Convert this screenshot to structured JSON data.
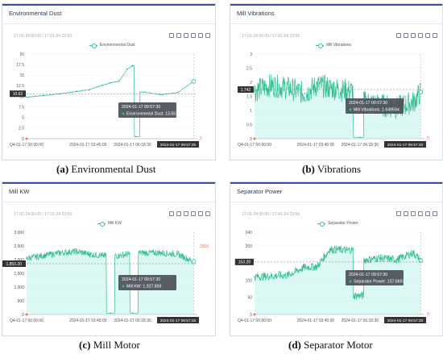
{
  "panels": [
    {
      "id": "dust",
      "title": "Environmental Dust",
      "range": "17-01-24 00:00 / 17-01-24 23:59",
      "legend": "Environmental Dust",
      "accent": "#2fbf8c",
      "yticks": [
        "0",
        "2.5",
        "5",
        "7.5",
        "10",
        "12.5",
        "15",
        "17.5",
        "20"
      ],
      "xticks": [
        "Q4-01-17 00:00:00",
        "2024-01-17 03:45:00",
        "2024-01-17 06:18:30"
      ],
      "ylim": [
        0,
        20
      ],
      "cursor_value": "10.62",
      "right_edge_label": "0",
      "tooltip_time": "2024-01-17 09:57:30",
      "tooltip_label": "Environmental Dust",
      "tooltip_value": "13.55327",
      "end_label": "2024-01-17 09:57:30"
    },
    {
      "id": "vib",
      "title": "Mill Vibrations",
      "range": "17-01-24 00:00 / 17-01-24 23:59",
      "legend": "Mill Vibrations",
      "accent": "#2fbf8c",
      "yticks": [
        "0",
        "0.5",
        "1",
        "1.5",
        "2",
        "2.5",
        "3"
      ],
      "xticks": [
        "Q4-01-17 00:00:00",
        "2024-01-17 03:45:00",
        "2024-01-17 06:18:30"
      ],
      "ylim": [
        0,
        3
      ],
      "cursor_value": "1.742",
      "right_edge_label": "0",
      "tooltip_time": "2024-01-17 09:57:30",
      "tooltip_label": "Mill Vibrations",
      "tooltip_value": "1.648594",
      "end_label": "2024-01-17 09:57:30"
    },
    {
      "id": "kw",
      "title": "Mill KW",
      "range": "17-01-24 00:00 / 17-01-24 23:59",
      "legend": "Mill KW",
      "accent": "#2fbf8c",
      "yticks": [
        "0",
        "500",
        "1,000",
        "1,500",
        "2,000",
        "2,500",
        "3,000"
      ],
      "xticks": [
        "Q4-01-17 00:00:00",
        "2024-01-17 03:45:00",
        "2024-01-17 06:18:30"
      ],
      "ylim": [
        0,
        3000
      ],
      "cursor_value": "1,853.20",
      "right_edge_label": "2500",
      "tooltip_time": "2024-01-17 09:57:30",
      "tooltip_label": "Mill KW",
      "tooltip_value": "1,927.859",
      "end_label": "2024-01-17 09:57:30"
    },
    {
      "id": "sep",
      "title": "Separator Power",
      "range": "17-01-24 00:00 / 17-01-24 23:59",
      "legend": "Separator Power",
      "accent": "#2fbf8c",
      "yticks": [
        "0",
        "50",
        "100",
        "150",
        "200",
        "240"
      ],
      "xticks": [
        "Q4-01-17 00:00:00",
        "2024-01-17 03:45:00",
        "2024-01-17 06:18:30"
      ],
      "ylim": [
        0,
        240
      ],
      "cursor_value": "153.28",
      "right_edge_label": "0",
      "tooltip_time": "2024-01-17 09:57:30",
      "tooltip_label": "Separator Power",
      "tooltip_value": "157.6693",
      "end_label": "2024-01-17 09:57:30"
    }
  ],
  "captions": [
    {
      "letter": "(a)",
      "text": "Environmental Dust"
    },
    {
      "letter": "(b)",
      "text": "Vibrations"
    },
    {
      "letter": "(c)",
      "text": "Mill Motor"
    },
    {
      "letter": "(d)",
      "text": "Separator Motor"
    }
  ],
  "toolbar_icons": [
    "zoom-icon",
    "zoom-reset-icon",
    "data-view-icon",
    "line-chart-icon",
    "bar-chart-icon",
    "download-icon"
  ],
  "chart_data": [
    {
      "type": "line",
      "title": "Environmental Dust",
      "ylim": [
        0,
        20
      ],
      "x": [
        "00:00",
        "01:00",
        "02:00",
        "03:00",
        "03:45",
        "04:30",
        "05:00",
        "05:30",
        "06:00",
        "06:18",
        "06:30",
        "07:00",
        "08:00",
        "09:00",
        "09:57"
      ],
      "series": [
        {
          "name": "Environmental Dust",
          "values": [
            9.8,
            10.2,
            10.6,
            11.2,
            11.6,
            12.6,
            13.2,
            13.6,
            16.4,
            17.2,
            0.5,
            11.0,
            10.4,
            10.9,
            13.55
          ]
        }
      ]
    },
    {
      "type": "line",
      "title": "Mill Vibrations",
      "ylim": [
        0,
        3
      ],
      "x": [
        "00:00",
        "01:00",
        "02:00",
        "03:00",
        "03:45",
        "04:30",
        "05:30",
        "06:18",
        "06:45",
        "07:30",
        "08:30",
        "09:30",
        "09:57"
      ],
      "series": [
        {
          "name": "Mill Vibrations",
          "values": [
            1.7,
            1.9,
            1.8,
            1.6,
            1.9,
            1.8,
            1.7,
            0.05,
            1.3,
            1.2,
            1.1,
            1.3,
            1.65
          ]
        }
      ]
    },
    {
      "type": "line",
      "title": "Mill KW",
      "ylim": [
        0,
        3000
      ],
      "x": [
        "00:00",
        "01:00",
        "02:00",
        "03:00",
        "03:45",
        "04:30",
        "05:00",
        "05:30",
        "06:00",
        "06:18",
        "07:00",
        "08:00",
        "09:00",
        "09:57"
      ],
      "series": [
        {
          "name": "Mill KW",
          "values": [
            2050,
            2150,
            2250,
            2300,
            2200,
            2150,
            50,
            2150,
            2200,
            50,
            2250,
            2250,
            2200,
            1928
          ]
        }
      ]
    },
    {
      "type": "line",
      "title": "Separator Power",
      "ylim": [
        0,
        240
      ],
      "x": [
        "00:00",
        "01:00",
        "02:00",
        "03:00",
        "03:45",
        "04:30",
        "05:30",
        "06:18",
        "06:45",
        "07:30",
        "08:30",
        "09:30",
        "09:57"
      ],
      "series": [
        {
          "name": "Separator Power",
          "values": [
            110,
            112,
            115,
            138,
            140,
            190,
            188,
            55,
            160,
            165,
            160,
            180,
            157.7
          ]
        }
      ]
    }
  ]
}
